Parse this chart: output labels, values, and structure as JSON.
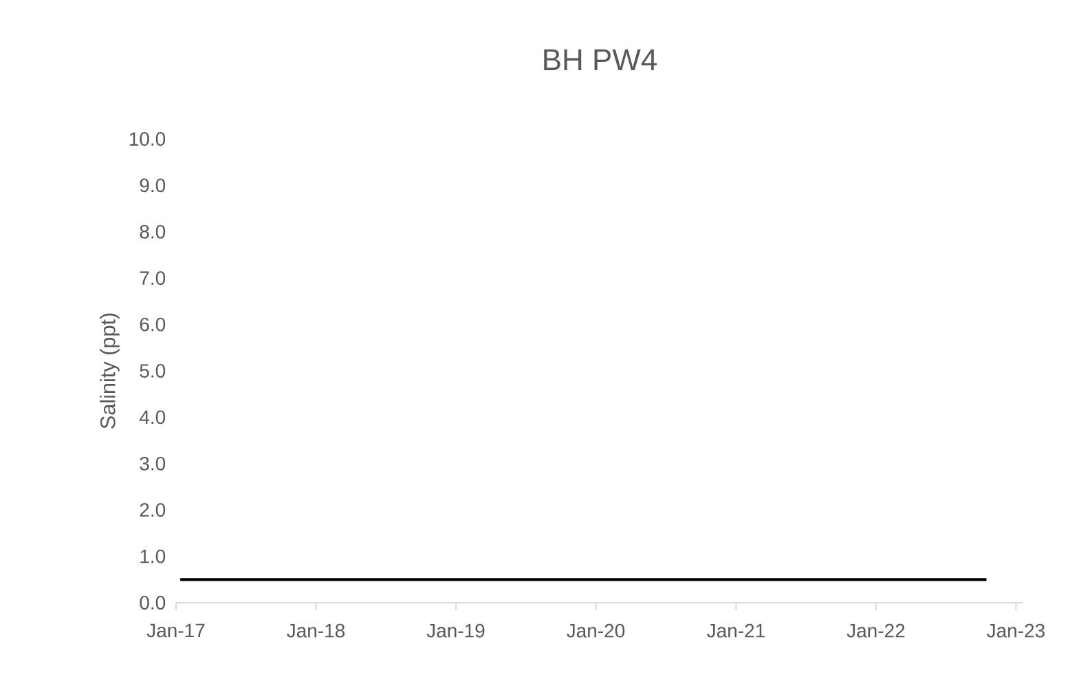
{
  "chart_data": {
    "type": "line",
    "title": "BH PW4",
    "ylabel": "Salinity (ppt)",
    "x": [
      "2017-01-12",
      "2022-10-16"
    ],
    "series": [
      {
        "color": "#000000",
        "values": [
          0.5,
          0.5
        ]
      }
    ],
    "xlim": [
      "2017-01-01",
      "2023-01-20"
    ],
    "xticks": [
      {
        "value": "2017-01-01",
        "label": "Jan-17"
      },
      {
        "value": "2018-01-01",
        "label": "Jan-18"
      },
      {
        "value": "2019-01-01",
        "label": "Jan-19"
      },
      {
        "value": "2020-01-01",
        "label": "Jan-20"
      },
      {
        "value": "2021-01-01",
        "label": "Jan-21"
      },
      {
        "value": "2022-01-01",
        "label": "Jan-22"
      },
      {
        "value": "2023-01-01",
        "label": "Jan-23"
      }
    ],
    "ylim": [
      0,
      10
    ],
    "yticks": [
      {
        "value": 0,
        "label": "0.0"
      },
      {
        "value": 1,
        "label": "1.0"
      },
      {
        "value": 2,
        "label": "2.0"
      },
      {
        "value": 3,
        "label": "3.0"
      },
      {
        "value": 4,
        "label": "4.0"
      },
      {
        "value": 5,
        "label": "5.0"
      },
      {
        "value": 6,
        "label": "6.0"
      },
      {
        "value": 7,
        "label": "7.0"
      },
      {
        "value": 8,
        "label": "8.0"
      },
      {
        "value": 9,
        "label": "9.0"
      },
      {
        "value": 10,
        "label": "10.0"
      }
    ],
    "grid": false
  }
}
